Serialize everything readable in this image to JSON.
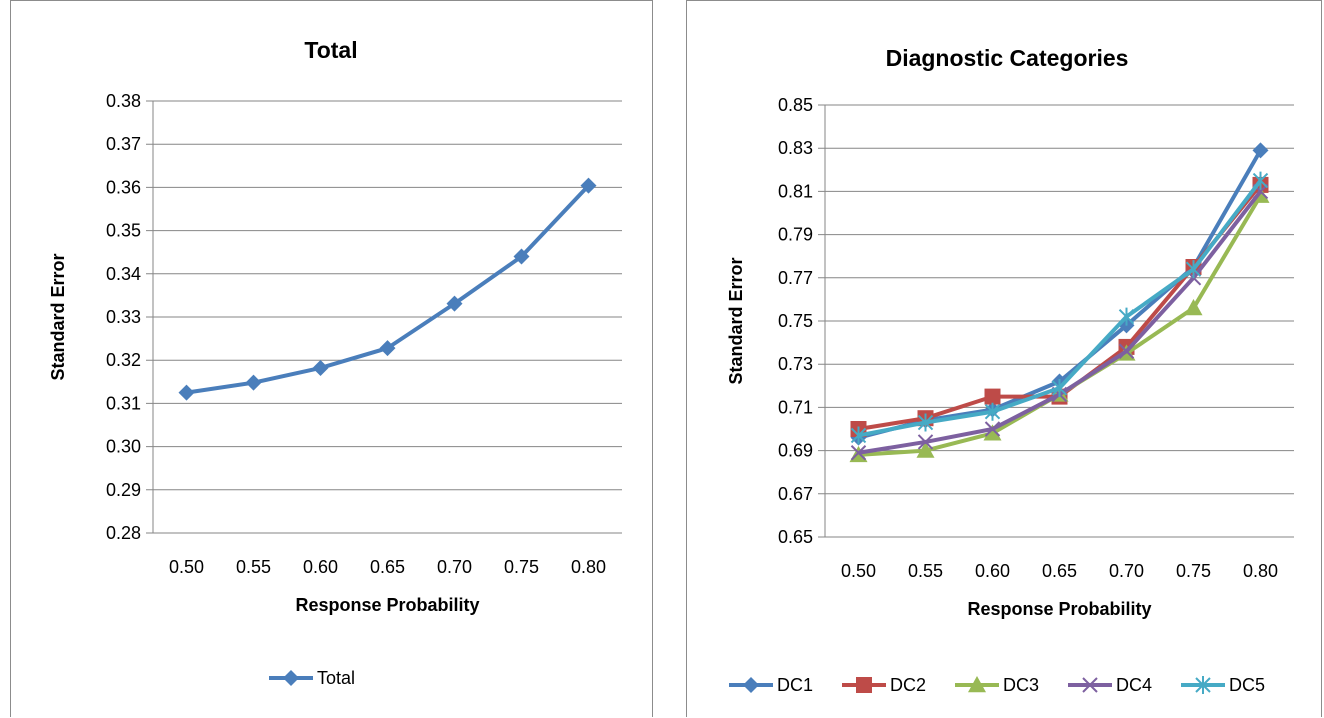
{
  "colors": {
    "DC1": "#4a7ebb",
    "DC2": "#be4b48",
    "DC3": "#98b954",
    "DC4": "#7d60a0",
    "DC5": "#46aac5",
    "Total": "#4a7ebb"
  },
  "chart_data": [
    {
      "type": "line",
      "title": "Total",
      "xlabel": "Response Probability",
      "ylabel": "Standard Error",
      "categories": [
        "0.50",
        "0.55",
        "0.60",
        "0.65",
        "0.70",
        "0.75",
        "0.80"
      ],
      "yticks": [
        "0.28",
        "0.29",
        "0.30",
        "0.31",
        "0.32",
        "0.33",
        "0.34",
        "0.35",
        "0.36",
        "0.37",
        "0.38"
      ],
      "ylim": [
        0.28,
        0.38
      ],
      "grid": true,
      "legend": "bottom",
      "series": [
        {
          "name": "Total",
          "marker": "diamond",
          "values": [
            0.3125,
            0.3148,
            0.3182,
            0.3228,
            0.3331,
            0.344,
            0.3604
          ]
        }
      ]
    },
    {
      "type": "line",
      "title": "Diagnostic Categories",
      "xlabel": "Response Probability",
      "ylabel": "Standard Error",
      "categories": [
        "0.50",
        "0.55",
        "0.60",
        "0.65",
        "0.70",
        "0.75",
        "0.80"
      ],
      "yticks": [
        "0.65",
        "0.67",
        "0.69",
        "0.71",
        "0.73",
        "0.75",
        "0.77",
        "0.79",
        "0.81",
        "0.83",
        "0.85"
      ],
      "ylim": [
        0.65,
        0.85
      ],
      "grid": true,
      "legend": "bottom",
      "series": [
        {
          "name": "DC1",
          "marker": "diamond",
          "values": [
            0.696,
            0.704,
            0.709,
            0.722,
            0.748,
            0.775,
            0.829
          ]
        },
        {
          "name": "DC2",
          "marker": "square",
          "values": [
            0.7,
            0.705,
            0.715,
            0.715,
            0.738,
            0.775,
            0.813
          ]
        },
        {
          "name": "DC3",
          "marker": "triangle",
          "values": [
            0.688,
            0.69,
            0.698,
            0.716,
            0.735,
            0.756,
            0.808
          ]
        },
        {
          "name": "DC4",
          "marker": "x",
          "values": [
            0.689,
            0.694,
            0.7,
            0.716,
            0.736,
            0.77,
            0.81
          ]
        },
        {
          "name": "DC5",
          "marker": "star",
          "values": [
            0.697,
            0.703,
            0.708,
            0.719,
            0.752,
            0.774,
            0.815
          ]
        }
      ]
    }
  ]
}
